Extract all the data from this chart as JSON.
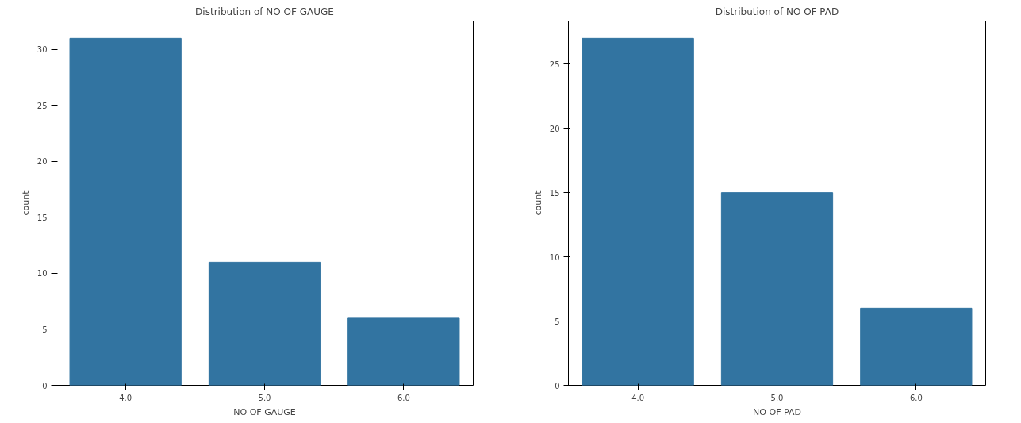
{
  "chart_data": [
    {
      "type": "bar",
      "title": "Distribution of NO OF GAUGE",
      "xlabel": "NO OF GAUGE",
      "ylabel": "count",
      "categories": [
        "4.0",
        "5.0",
        "6.0"
      ],
      "values": [
        31,
        11,
        6
      ],
      "color": "#3274a1",
      "ylim": [
        0,
        32.55
      ],
      "yticks": [
        0,
        5,
        10,
        15,
        20,
        25,
        30
      ],
      "grid": false
    },
    {
      "type": "bar",
      "title": "Distribution of NO OF PAD",
      "xlabel": "NO OF PAD",
      "ylabel": "count",
      "categories": [
        "4.0",
        "5.0",
        "6.0"
      ],
      "values": [
        27,
        15,
        6
      ],
      "color": "#3274a1",
      "ylim": [
        0,
        28.35
      ],
      "yticks": [
        0,
        5,
        10,
        15,
        20,
        25
      ],
      "grid": false
    }
  ]
}
